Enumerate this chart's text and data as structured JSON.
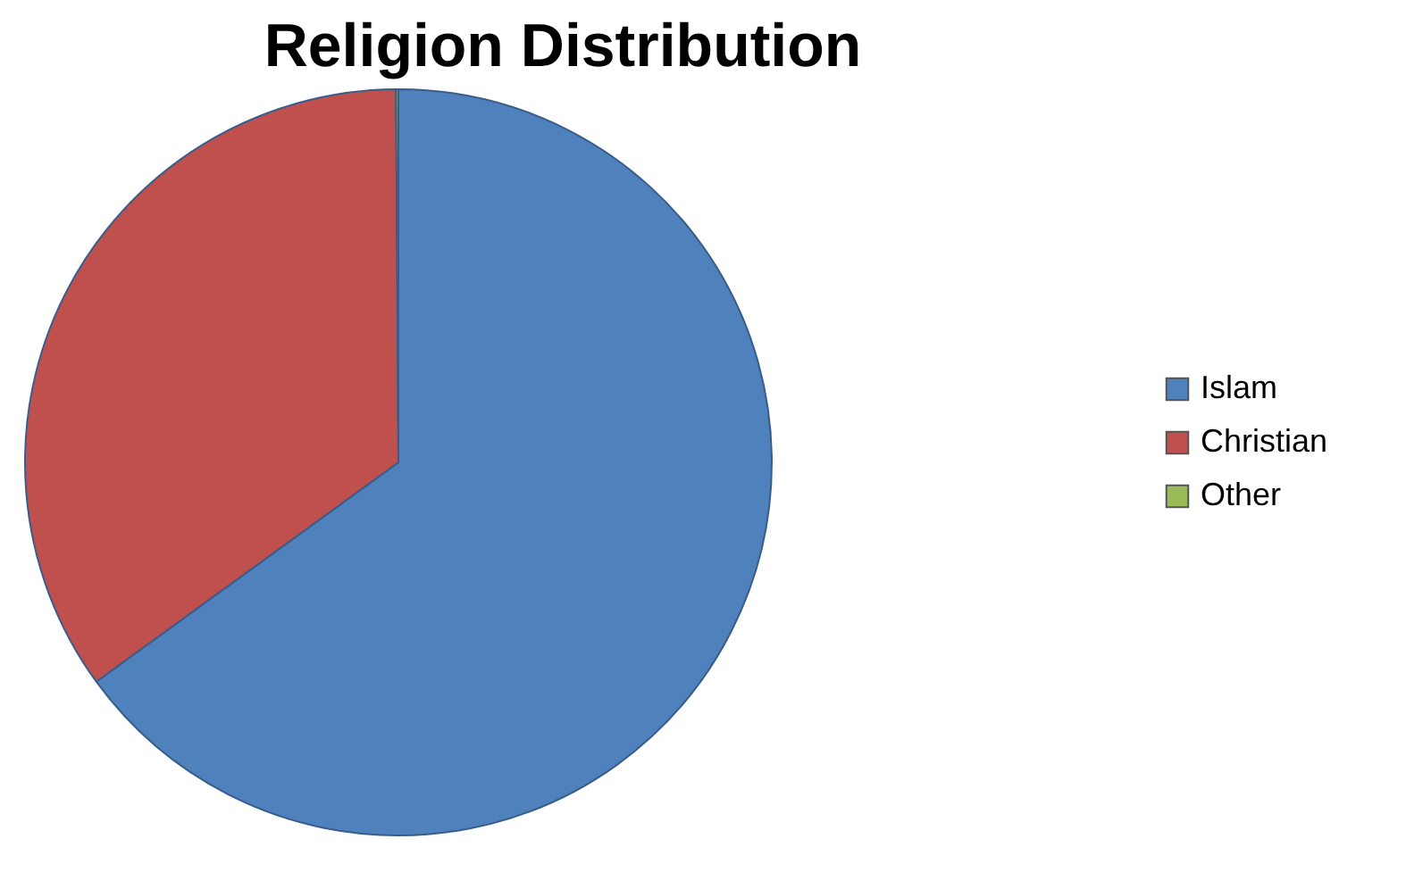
{
  "chart_data": {
    "type": "pie",
    "title": "Religion Distribution",
    "categories": [
      "Islam",
      "Christian",
      "Other"
    ],
    "values": [
      65,
      34.9,
      0.1
    ],
    "colors": [
      "#4f81bd",
      "#c0504d",
      "#9bbb59"
    ],
    "legend": "right"
  }
}
